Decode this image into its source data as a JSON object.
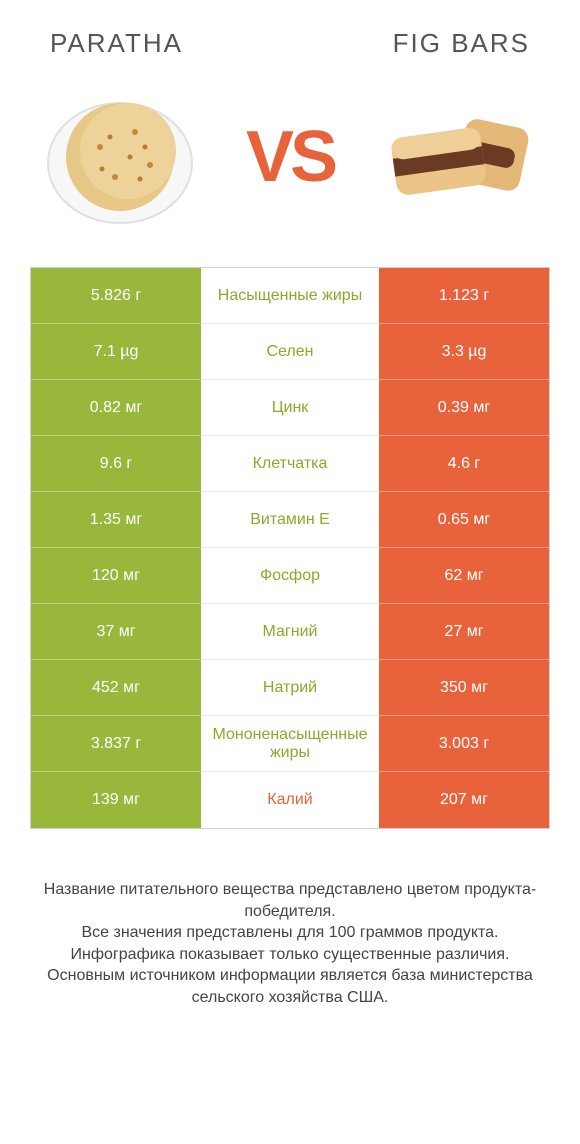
{
  "colors": {
    "green": "#99b83b",
    "orange": "#e8633c",
    "mid_green_text": "#8aaa2a",
    "mid_orange_text": "#e8633c",
    "vs": "#e8633c",
    "border": "#d0d0d0"
  },
  "header": {
    "left": "PARATHA",
    "right": "FIG BARS"
  },
  "vs_label": "VS",
  "rows": [
    {
      "left": "5.826 г",
      "mid": "Насыщенные жиры",
      "right": "1.123 г",
      "winner": "left"
    },
    {
      "left": "7.1 µg",
      "mid": "Селен",
      "right": "3.3 µg",
      "winner": "left"
    },
    {
      "left": "0.82 мг",
      "mid": "Цинк",
      "right": "0.39 мг",
      "winner": "left"
    },
    {
      "left": "9.6 г",
      "mid": "Клетчатка",
      "right": "4.6 г",
      "winner": "left"
    },
    {
      "left": "1.35 мг",
      "mid": "Витамин E",
      "right": "0.65 мг",
      "winner": "left"
    },
    {
      "left": "120 мг",
      "mid": "Фосфор",
      "right": "62 мг",
      "winner": "left"
    },
    {
      "left": "37 мг",
      "mid": "Магний",
      "right": "27 мг",
      "winner": "left"
    },
    {
      "left": "452 мг",
      "mid": "Натрий",
      "right": "350 мг",
      "winner": "left"
    },
    {
      "left": "3.837 г",
      "mid": "Мононенасыщенные жиры",
      "right": "3.003 г",
      "winner": "left"
    },
    {
      "left": "139 мг",
      "mid": "Калий",
      "right": "207 мг",
      "winner": "right"
    }
  ],
  "footer_lines": [
    "Название питательного вещества представлено цветом продукта-победителя.",
    "Все значения представлены для 100 граммов продукта.",
    "Инфографика показывает только существенные различия.",
    "Основным источником информации является база министерства сельского хозяйства США."
  ]
}
